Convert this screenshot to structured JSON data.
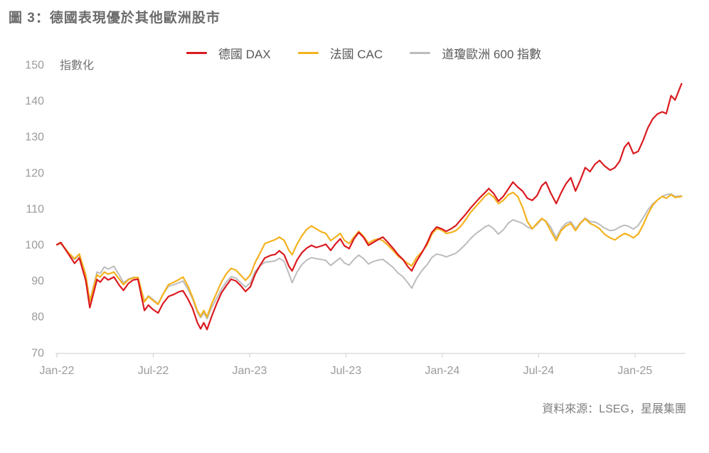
{
  "figure": {
    "title": "圖 3：德國表現優於其他歐洲股市",
    "source": "資料來源：LSEG，星展集團"
  },
  "colors": {
    "title_text": "#6b6b6b",
    "legend_text": "#595959",
    "axis_text": "#9b9b9b",
    "unit_text": "#757575",
    "axis_line": "#d6d6d6",
    "source_text": "#7f7f7f",
    "dax_red": "#da1a1f",
    "cac_yellow": "#f4b21e",
    "stoxx_gray": "#bcbcbc"
  },
  "chart_data": {
    "type": "line",
    "title": "圖 3：德國表現優於其他歐洲股市",
    "ylabel": "指數化",
    "xlabel": "",
    "grid": false,
    "legend_position": "top",
    "ylim": [
      70,
      150
    ],
    "yticks": [
      70,
      80,
      90,
      100,
      110,
      120,
      130,
      140,
      150
    ],
    "x_unit": "months since Jan-2022 (weekly indexed prices, Jan-22 = 100)",
    "xticks": [
      {
        "m": 0,
        "label": "Jan-22"
      },
      {
        "m": 6,
        "label": "Jul-22"
      },
      {
        "m": 12,
        "label": "Jan-23"
      },
      {
        "m": 18,
        "label": "Jul-23"
      },
      {
        "m": 24,
        "label": "Jan-24"
      },
      {
        "m": 30,
        "label": "Jul-24"
      },
      {
        "m": 36,
        "label": "Jan-25"
      }
    ],
    "x": [
      0,
      0.25,
      0.75,
      1.1,
      1.4,
      1.8,
      2.05,
      2.5,
      2.7,
      2.95,
      3.2,
      3.55,
      3.9,
      4.15,
      4.45,
      4.75,
      5.05,
      5.45,
      5.7,
      5.95,
      6.3,
      6.6,
      6.95,
      7.3,
      7.6,
      7.85,
      8.15,
      8.45,
      8.75,
      8.95,
      9.15,
      9.35,
      9.65,
      9.95,
      10.25,
      10.55,
      10.85,
      11.15,
      11.45,
      11.75,
      12.05,
      12.35,
      12.65,
      12.95,
      13.3,
      13.6,
      13.85,
      14.15,
      14.45,
      14.65,
      14.95,
      15.25,
      15.55,
      15.85,
      16.15,
      16.45,
      16.75,
      17.05,
      17.35,
      17.65,
      17.9,
      18.2,
      18.5,
      18.8,
      19.1,
      19.4,
      19.7,
      20,
      20.3,
      20.6,
      20.95,
      21.25,
      21.55,
      21.85,
      22.1,
      22.4,
      22.75,
      23.05,
      23.35,
      23.65,
      23.95,
      24.25,
      24.55,
      24.85,
      25.15,
      25.45,
      25.75,
      26.05,
      26.35,
      26.65,
      26.9,
      27.2,
      27.5,
      27.8,
      28.1,
      28.4,
      28.7,
      29,
      29.3,
      29.6,
      29.9,
      30.2,
      30.45,
      30.75,
      31.1,
      31.4,
      31.7,
      32,
      32.3,
      32.6,
      32.9,
      33.2,
      33.5,
      33.8,
      34.1,
      34.45,
      34.75,
      35.05,
      35.35,
      35.6,
      35.9,
      36.2,
      36.5,
      36.8,
      37.1,
      37.4,
      37.7,
      37.95,
      38.25,
      38.5,
      38.9
    ],
    "series": [
      {
        "id": "stoxx600",
        "name": "道瓊歐洲 600 指數",
        "color": "#bcbcbc",
        "stroke_width": 2,
        "values": [
          100,
          100.3,
          97.3,
          95.9,
          97,
          91.8,
          84.4,
          92.4,
          92,
          93.8,
          93.2,
          94,
          91.4,
          89.4,
          90.4,
          90.9,
          90.9,
          84.3,
          85.8,
          84.9,
          83.6,
          86.2,
          88.4,
          88.9,
          89.4,
          89.9,
          87.7,
          84.9,
          81.1,
          79.7,
          81,
          79.4,
          82.6,
          85.1,
          87.6,
          89.6,
          91.1,
          90.7,
          89.4,
          88.2,
          89.4,
          92.6,
          94.1,
          95.1,
          95.3,
          95.5,
          96.2,
          95.4,
          91.9,
          89.4,
          92.4,
          94.4,
          95.7,
          96.4,
          96.1,
          95.9,
          95.6,
          94.2,
          95.3,
          96.3,
          94.9,
          94.3,
          95.9,
          97.1,
          96.1,
          94.6,
          95.3,
          95.7,
          95.9,
          94.9,
          93.6,
          92.1,
          91.1,
          89.4,
          87.9,
          90.6,
          92.9,
          94.4,
          96.4,
          97.4,
          97.1,
          96.6,
          97.1,
          97.6,
          98.8,
          100.1,
          101.6,
          102.9,
          103.9,
          104.9,
          105.4,
          104.4,
          102.9,
          104.1,
          105.9,
          106.9,
          106.4,
          105.9,
          104.9,
          104.4,
          105.6,
          107.1,
          106.6,
          104.9,
          101.9,
          104.4,
          105.9,
          106.4,
          104.4,
          106.1,
          107.4,
          106.4,
          106.3,
          105.6,
          104.6,
          103.9,
          104.1,
          104.9,
          105.4,
          105.1,
          104.3,
          105.3,
          107.4,
          109.6,
          111.3,
          112.4,
          113.4,
          113.9,
          114.1,
          113.4,
          113.6
        ]
      },
      {
        "id": "cac",
        "name": "法國 CAC",
        "color": "#f4b21e",
        "stroke_width": 2.2,
        "values": [
          100,
          100.4,
          97.6,
          96.1,
          97.4,
          91.5,
          84.2,
          91.6,
          91,
          92.4,
          91.8,
          92.4,
          90.3,
          88.9,
          90.2,
          90.8,
          90.9,
          84.1,
          85.6,
          84.6,
          83.4,
          86.1,
          88.9,
          89.6,
          90.3,
          91,
          88.6,
          85.4,
          81.6,
          80.1,
          81.7,
          79.9,
          83.7,
          86.6,
          89.6,
          91.9,
          93.4,
          92.9,
          91.5,
          90.1,
          91.6,
          95.1,
          97.6,
          100.3,
          100.9,
          101.4,
          102.1,
          101.2,
          98.4,
          97.2,
          100.1,
          102.4,
          104.2,
          105.2,
          104.4,
          103.6,
          103.1,
          101.1,
          102.1,
          103.1,
          101.2,
          100.3,
          102.1,
          103.7,
          102.3,
          100.4,
          101.2,
          101.6,
          101.1,
          99.9,
          98.3,
          96.8,
          95.8,
          94.8,
          94.1,
          96.4,
          98.1,
          99.9,
          102.9,
          104.4,
          104.1,
          103.1,
          103.4,
          103.9,
          105.1,
          106.9,
          108.9,
          110.4,
          111.9,
          113.4,
          114.3,
          113.2,
          111.4,
          112.3,
          113.8,
          114.5,
          113.4,
          110.4,
          106.4,
          104.4,
          105.9,
          107.3,
          106.4,
          103.9,
          101.1,
          103.9,
          105.2,
          105.9,
          103.9,
          105.9,
          107.2,
          105.9,
          105.3,
          104.4,
          102.9,
          101.9,
          101.3,
          102.3,
          103.1,
          102.7,
          101.9,
          102.9,
          105.4,
          108.4,
          110.9,
          112.4,
          113.4,
          112.9,
          113.9,
          113.1,
          113.4
        ]
      },
      {
        "id": "dax",
        "name": "德國 DAX",
        "color": "#da1a1f",
        "stroke_width": 2.2,
        "values": [
          100,
          100.6,
          97.2,
          94.8,
          96.3,
          90,
          82.5,
          90.3,
          89.6,
          91,
          90.2,
          91,
          88.6,
          87.3,
          89.2,
          90.2,
          90.4,
          81.7,
          83.2,
          82.1,
          81,
          83.6,
          85.6,
          86.2,
          86.9,
          87.2,
          85,
          82.3,
          78.3,
          76.6,
          78.3,
          76.4,
          80.2,
          83.6,
          86.6,
          88.6,
          90.4,
          89.9,
          88.6,
          87,
          88.3,
          91.8,
          94.2,
          96.3,
          97,
          97.3,
          98.3,
          97.2,
          94,
          92.7,
          95.7,
          97.7,
          99,
          99.8,
          99.2,
          99.6,
          100.1,
          98.4,
          100.2,
          101.6,
          99.7,
          98.9,
          101.6,
          103.4,
          102,
          99.8,
          100.6,
          101.4,
          102.1,
          100.7,
          98.9,
          97.2,
          95.9,
          93.9,
          92.7,
          95.4,
          97.9,
          100.4,
          103.4,
          104.9,
          104.4,
          103.7,
          104.4,
          105.3,
          106.9,
          108.4,
          110.1,
          111.6,
          113.1,
          114.4,
          115.6,
          114.2,
          112.1,
          113.4,
          115.4,
          117.4,
          116,
          114.9,
          112.9,
          112.3,
          113.6,
          116.4,
          117.4,
          114.4,
          111.4,
          114.4,
          116.9,
          118.6,
          114.9,
          117.9,
          121.4,
          120.3,
          122.3,
          123.4,
          121.9,
          120.7,
          121.4,
          123.2,
          127.1,
          128.4,
          125.3,
          125.9,
          128.9,
          132.4,
          134.9,
          136.3,
          136.9,
          136.4,
          141.4,
          140.2,
          144.7
        ]
      }
    ],
    "legend_order": [
      "dax",
      "cac",
      "stoxx600"
    ]
  }
}
